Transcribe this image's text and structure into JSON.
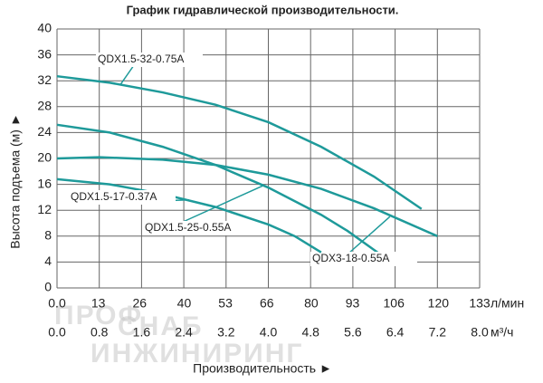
{
  "chart_data": {
    "type": "line",
    "title": "График гидравлической производительности.",
    "x_label": "Производительность ►",
    "y_label": "Высота подъема (м) ►",
    "x_unit": "м³/ч",
    "x2_unit": "л/мин",
    "watermark": [
      "ПРОФ",
      "СНАБ",
      "ИНЖИНИРИНГ"
    ],
    "xlim": [
      0,
      8
    ],
    "xticks": [
      {
        "value": 0,
        "label": "0.0"
      },
      0.8,
      1.6,
      2.4,
      3.2,
      {
        "value": 4,
        "label": "4.0"
      },
      4.8,
      5.6,
      6.4,
      7.2,
      {
        "value": 8,
        "label": "8.0"
      }
    ],
    "x2lim": [
      0,
      133
    ],
    "x2ticks": [
      {
        "value": 0,
        "label": "0.0"
      },
      13,
      26,
      40,
      53,
      66,
      80,
      93,
      106,
      120,
      133
    ],
    "ylim": [
      0,
      40
    ],
    "yticks": [
      0,
      4,
      8,
      12,
      16,
      20,
      24,
      28,
      32,
      36,
      40
    ],
    "grid": true,
    "series": [
      {
        "name": "QDX1.5-32-0.75A",
        "color": "#1e9a9a",
        "x": [
          0,
          1,
          2,
          3,
          4,
          5,
          6,
          6.9
        ],
        "values": [
          32.7,
          31.7,
          30.2,
          28.3,
          25.6,
          21.8,
          17.2,
          12.2
        ]
      },
      {
        "name": "QDX1.5-25-0.55A",
        "color": "#1e9a9a",
        "x": [
          0,
          1,
          2,
          3,
          4,
          5,
          5.5,
          6.1
        ],
        "values": [
          25.2,
          24,
          21.8,
          19,
          15.5,
          11.3,
          8.8,
          5.3
        ]
      },
      {
        "name": "QDX3-18-0.55A",
        "color": "#1e9a9a",
        "x": [
          0,
          0.8,
          2,
          3,
          4,
          5,
          6,
          7.2
        ],
        "values": [
          20,
          20.2,
          19.8,
          19,
          17.5,
          15.3,
          12.3,
          8
        ]
      },
      {
        "name": "QDX1.5-17-0.37A",
        "color": "#1e9a9a",
        "x": [
          0,
          1,
          2,
          3,
          4,
          4.5,
          5
        ],
        "values": [
          16.8,
          16,
          14.5,
          12.5,
          9.8,
          8,
          5.5
        ]
      }
    ]
  }
}
